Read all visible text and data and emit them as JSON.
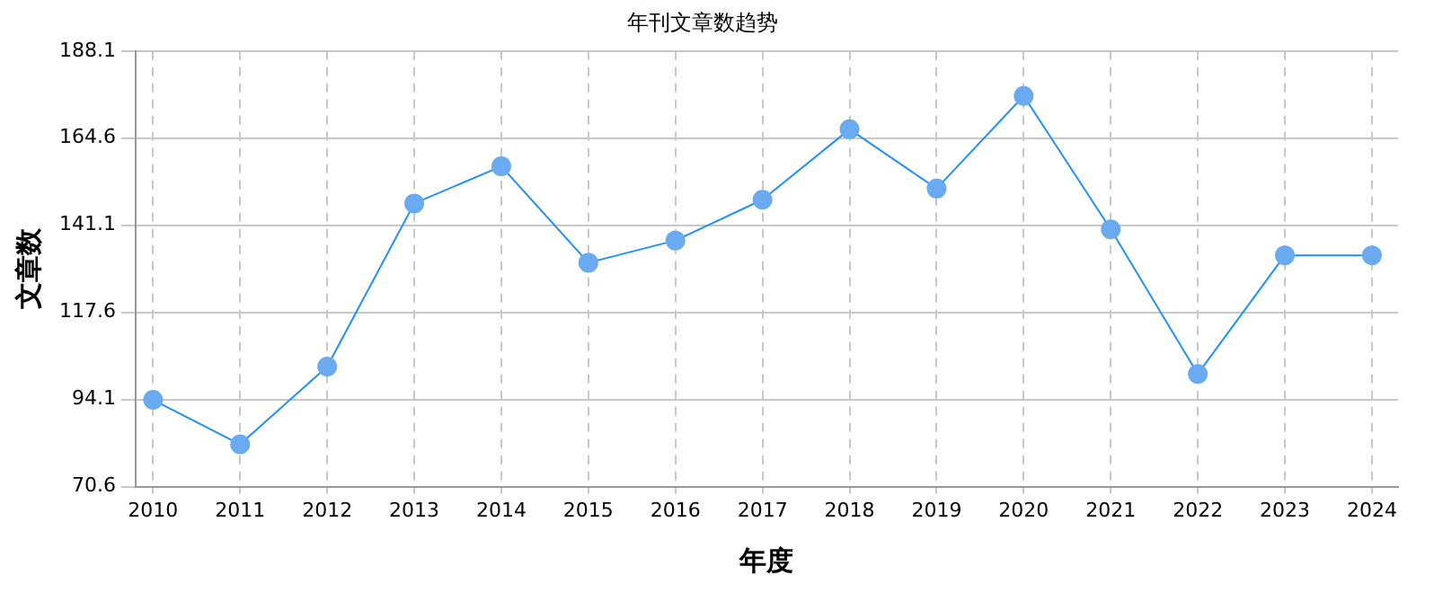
{
  "chart_data": {
    "type": "line",
    "title": "年刊文章数趋势",
    "xlabel": "年度",
    "ylabel": "文章数",
    "x": [
      2010,
      2011,
      2012,
      2013,
      2014,
      2015,
      2016,
      2017,
      2018,
      2019,
      2020,
      2021,
      2022,
      2023,
      2024
    ],
    "series": [
      {
        "color": "#1e90ff",
        "values": [
          94,
          82,
          103,
          147,
          157,
          131,
          137,
          148,
          167,
          151,
          176,
          140,
          101,
          133,
          133
        ]
      }
    ],
    "xlim": [
      2009.8,
      2024.3
    ],
    "xticks": [
      2010,
      2011,
      2012,
      2013,
      2014,
      2015,
      2016,
      2017,
      2018,
      2019,
      2020,
      2021,
      2022,
      2023,
      2024
    ],
    "ylim": [
      70.6,
      188.1
    ],
    "yticks": [
      70.6,
      94.1,
      117.6,
      141.1,
      164.6,
      188.1
    ],
    "grid": true,
    "marker": "circle",
    "line_style": "solid",
    "legend": false
  }
}
